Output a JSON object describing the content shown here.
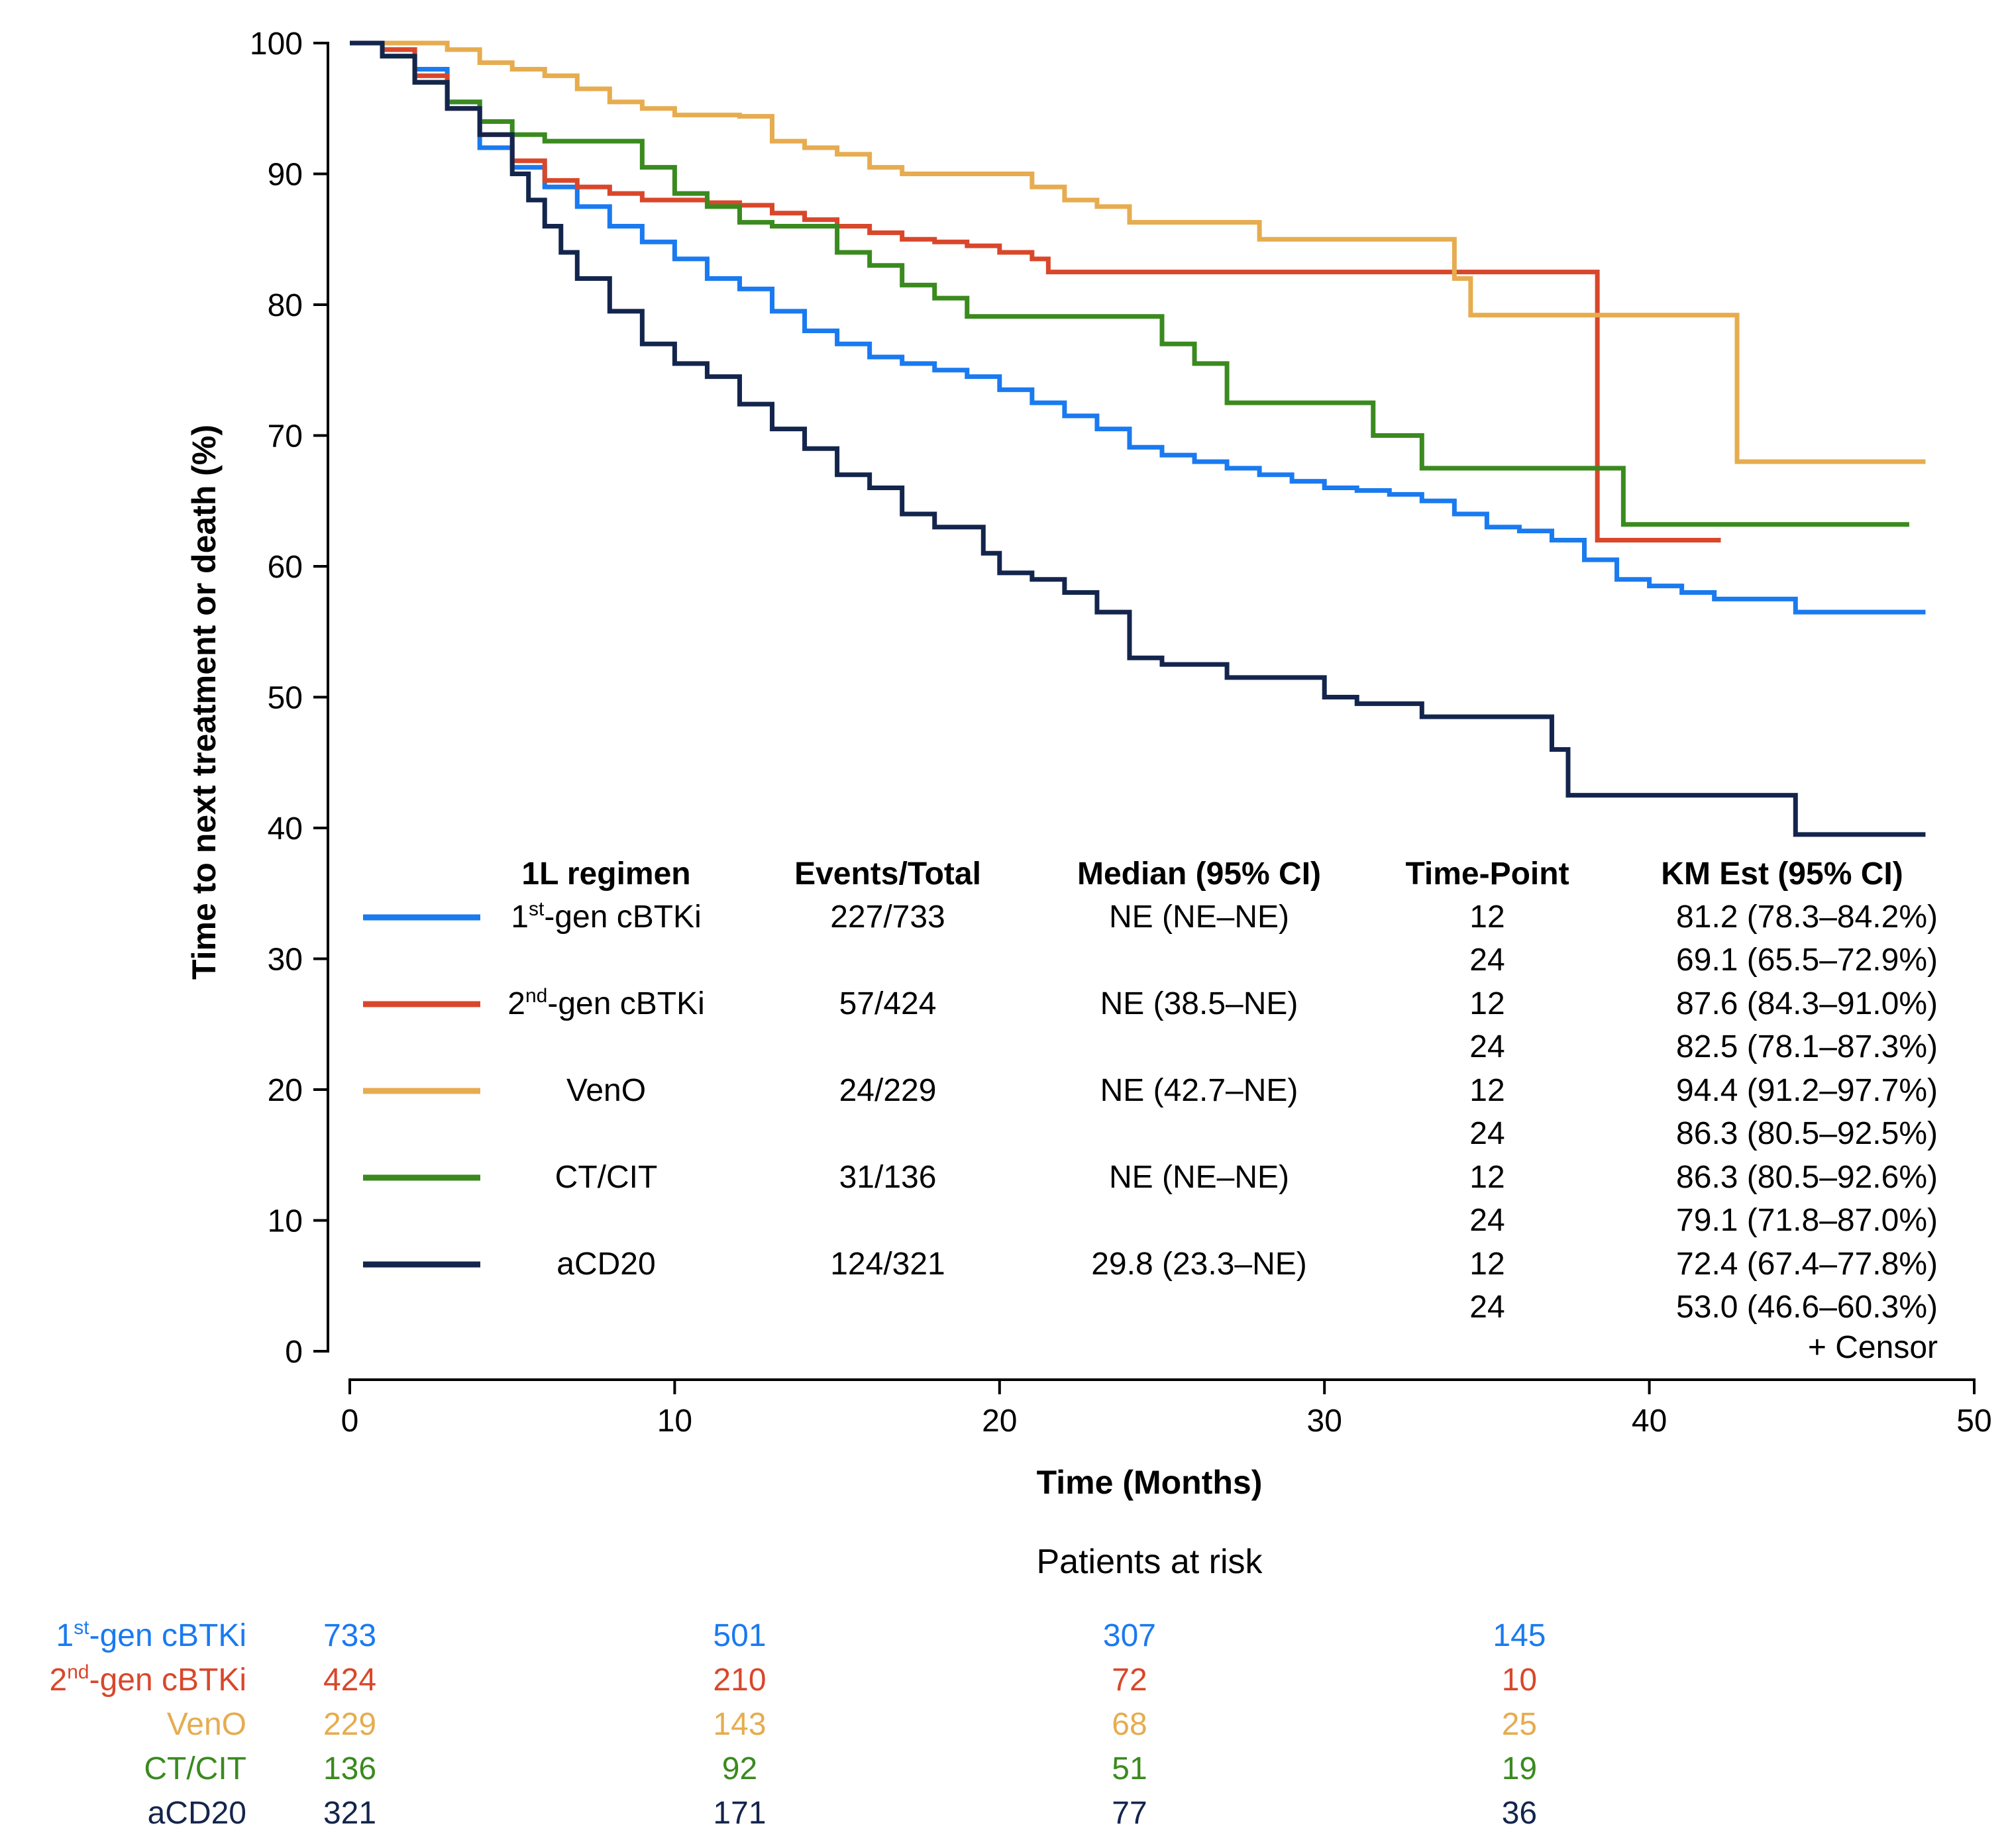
{
  "chart_data": {
    "type": "line",
    "subtype": "kaplan-meier",
    "ylabel": "Time to next treatment or death (%)",
    "xlabel": "Time (Months)",
    "xlim": [
      0,
      50
    ],
    "ylim": [
      0,
      100
    ],
    "x_ticks": [
      "0",
      "10",
      "20",
      "30",
      "40",
      "50"
    ],
    "y_ticks": [
      "0",
      "10",
      "20",
      "30",
      "40",
      "50",
      "60",
      "70",
      "80",
      "90",
      "100"
    ],
    "legend": {
      "headers": {
        "regimen": "1L regimen",
        "events": "Events/Total",
        "median": "Median (95% CI)",
        "timepoint": "Time-Point",
        "km": "KM Est (95% CI)"
      },
      "censor_label": "+ Censor"
    },
    "series": [
      {
        "name": "1st-gen cBTKi",
        "label_main": "1",
        "label_sup": "st",
        "label_rest": "-gen cBTKi",
        "color": "#1a7af0",
        "events": "227/733",
        "median": "NE (NE–NE)",
        "timepoints": [
          "12",
          "24"
        ],
        "km": [
          "81.2 (78.3–84.2%)",
          "69.1 (65.5–72.9%)"
        ],
        "at_risk": [
          "733",
          "501",
          "307",
          "145"
        ],
        "points": [
          [
            0,
            100
          ],
          [
            1,
            99.5
          ],
          [
            2,
            98
          ],
          [
            3,
            95.5
          ],
          [
            4,
            92
          ],
          [
            5,
            90.5
          ],
          [
            6,
            89
          ],
          [
            7,
            87.5
          ],
          [
            8,
            86
          ],
          [
            9,
            84.8
          ],
          [
            10,
            83.5
          ],
          [
            11,
            82
          ],
          [
            12,
            81.2
          ],
          [
            13,
            79.5
          ],
          [
            14,
            78
          ],
          [
            15,
            77
          ],
          [
            16,
            76
          ],
          [
            17,
            75.5
          ],
          [
            18,
            75
          ],
          [
            19,
            74.5
          ],
          [
            20,
            73.5
          ],
          [
            21,
            72.5
          ],
          [
            22,
            71.5
          ],
          [
            23,
            70.5
          ],
          [
            24,
            69.1
          ],
          [
            25,
            68.5
          ],
          [
            26,
            68
          ],
          [
            27,
            67.5
          ],
          [
            28,
            67
          ],
          [
            29,
            66.5
          ],
          [
            30,
            66
          ],
          [
            31,
            65.8
          ],
          [
            32,
            65.5
          ],
          [
            33,
            65
          ],
          [
            34,
            64
          ],
          [
            35,
            63
          ],
          [
            36,
            62.7
          ],
          [
            37,
            62
          ],
          [
            38,
            60.5
          ],
          [
            39,
            59
          ],
          [
            40,
            58.5
          ],
          [
            41,
            58
          ],
          [
            42,
            57.5
          ],
          [
            43,
            57.5
          ],
          [
            44,
            57.5
          ],
          [
            44.5,
            56.5
          ],
          [
            48.5,
            56.5
          ]
        ]
      },
      {
        "name": "2nd-gen cBTKi",
        "label_main": "2",
        "label_sup": "nd",
        "label_rest": "-gen cBTKi",
        "color": "#d9472b",
        "events": "57/424",
        "median": "NE (38.5–NE)",
        "timepoints": [
          "12",
          "24"
        ],
        "km": [
          "87.6 (84.3–91.0%)",
          "82.5 (78.1–87.3%)"
        ],
        "at_risk": [
          "424",
          "210",
          "72",
          "10"
        ],
        "points": [
          [
            0,
            100
          ],
          [
            1,
            99.5
          ],
          [
            2,
            97.5
          ],
          [
            3,
            95
          ],
          [
            4,
            93
          ],
          [
            5,
            91
          ],
          [
            6,
            89.5
          ],
          [
            7,
            89
          ],
          [
            8,
            88.5
          ],
          [
            9,
            88
          ],
          [
            10,
            88
          ],
          [
            11,
            87.8
          ],
          [
            12,
            87.6
          ],
          [
            13,
            87
          ],
          [
            14,
            86.5
          ],
          [
            15,
            86
          ],
          [
            16,
            85.5
          ],
          [
            17,
            85
          ],
          [
            18,
            84.8
          ],
          [
            19,
            84.5
          ],
          [
            20,
            84
          ],
          [
            21,
            83.5
          ],
          [
            21.5,
            82.5
          ],
          [
            30,
            82.5
          ],
          [
            38.4,
            82.5
          ],
          [
            38.4,
            62
          ],
          [
            42.2,
            62
          ]
        ]
      },
      {
        "name": "VenO",
        "label_main": "VenO",
        "label_sup": "",
        "label_rest": "",
        "color": "#e6ac4f",
        "events": "24/229",
        "median": "NE (42.7–NE)",
        "timepoints": [
          "12",
          "24"
        ],
        "km": [
          "94.4 (91.2–97.7%)",
          "86.3 (80.5–92.5%)"
        ],
        "at_risk": [
          "229",
          "143",
          "68",
          "25"
        ],
        "points": [
          [
            0,
            100
          ],
          [
            2,
            100
          ],
          [
            3,
            99.5
          ],
          [
            4,
            98.5
          ],
          [
            5,
            98
          ],
          [
            6,
            97.5
          ],
          [
            7,
            96.5
          ],
          [
            8,
            95.5
          ],
          [
            9,
            95
          ],
          [
            10,
            94.5
          ],
          [
            11,
            94.5
          ],
          [
            12,
            94.4
          ],
          [
            13,
            92.5
          ],
          [
            14,
            92
          ],
          [
            15,
            91.5
          ],
          [
            16,
            90.5
          ],
          [
            17,
            90
          ],
          [
            18,
            90
          ],
          [
            19,
            90
          ],
          [
            20,
            90
          ],
          [
            21,
            89
          ],
          [
            22,
            88
          ],
          [
            23,
            87.5
          ],
          [
            24,
            86.3
          ],
          [
            25,
            86.3
          ],
          [
            27,
            86.3
          ],
          [
            28,
            85
          ],
          [
            33,
            85
          ],
          [
            34,
            82
          ],
          [
            34.5,
            79.2
          ],
          [
            42.7,
            79.2
          ],
          [
            42.7,
            68
          ],
          [
            48.5,
            68
          ]
        ]
      },
      {
        "name": "CT/CIT",
        "label_main": "CT/CIT",
        "label_sup": "",
        "label_rest": "",
        "color": "#3a8a1f",
        "events": "31/136",
        "median": "NE (NE–NE)",
        "timepoints": [
          "12",
          "24"
        ],
        "km": [
          "86.3 (80.5–92.6%)",
          "79.1 (71.8–87.0%)"
        ],
        "at_risk": [
          "136",
          "92",
          "51",
          "19"
        ],
        "points": [
          [
            0,
            100
          ],
          [
            1,
            99
          ],
          [
            2,
            97
          ],
          [
            3,
            95.5
          ],
          [
            4,
            94
          ],
          [
            5,
            93
          ],
          [
            6,
            92.5
          ],
          [
            7,
            92.5
          ],
          [
            8,
            92.5
          ],
          [
            9,
            90.5
          ],
          [
            10,
            88.5
          ],
          [
            11,
            87.5
          ],
          [
            12,
            86.3
          ],
          [
            13,
            86
          ],
          [
            14,
            86
          ],
          [
            15,
            84
          ],
          [
            16,
            83
          ],
          [
            17,
            81.5
          ],
          [
            18,
            80.5
          ],
          [
            19,
            79.1
          ],
          [
            24,
            79.1
          ],
          [
            25,
            77
          ],
          [
            26,
            75.5
          ],
          [
            27,
            72.5
          ],
          [
            29,
            72.5
          ],
          [
            31,
            72.5
          ],
          [
            31.5,
            70
          ],
          [
            33,
            67.5
          ],
          [
            37,
            67.5
          ],
          [
            39,
            67.5
          ],
          [
            39.2,
            63.2
          ],
          [
            48,
            63.2
          ]
        ]
      },
      {
        "name": "aCD20",
        "label_main": "aCD20",
        "label_sup": "",
        "label_rest": "",
        "color": "#14254d",
        "events": "124/321",
        "median": "29.8 (23.3–NE)",
        "timepoints": [
          "12",
          "24"
        ],
        "km": [
          "72.4 (67.4–77.8%)",
          "53.0 (46.6–60.3%)"
        ],
        "at_risk": [
          "321",
          "171",
          "77",
          "36"
        ],
        "points": [
          [
            0,
            100
          ],
          [
            1,
            99
          ],
          [
            2,
            97
          ],
          [
            3,
            95
          ],
          [
            4,
            93
          ],
          [
            5,
            90
          ],
          [
            5.5,
            88
          ],
          [
            6,
            86
          ],
          [
            6.5,
            84
          ],
          [
            7,
            82
          ],
          [
            8,
            79.5
          ],
          [
            9,
            77
          ],
          [
            10,
            75.5
          ],
          [
            11,
            74.5
          ],
          [
            12,
            72.4
          ],
          [
            13,
            70.5
          ],
          [
            14,
            69
          ],
          [
            15,
            67
          ],
          [
            16,
            66
          ],
          [
            17,
            64
          ],
          [
            18,
            63
          ],
          [
            19,
            63
          ],
          [
            19.5,
            61
          ],
          [
            20,
            59.5
          ],
          [
            21,
            59
          ],
          [
            22,
            58
          ],
          [
            23,
            56.5
          ],
          [
            24,
            53
          ],
          [
            25,
            52.5
          ],
          [
            26,
            52.5
          ],
          [
            27,
            51.5
          ],
          [
            29,
            51.5
          ],
          [
            30,
            50
          ],
          [
            31,
            49.5
          ],
          [
            32,
            49.5
          ],
          [
            33,
            48.5
          ],
          [
            36,
            48.5
          ],
          [
            37,
            46
          ],
          [
            37.5,
            42.5
          ],
          [
            44,
            42.5
          ],
          [
            44.5,
            39.5
          ],
          [
            48.5,
            39.5
          ]
        ]
      }
    ],
    "risk_table": {
      "title": "Patients at risk",
      "x": [
        0,
        12,
        24,
        36
      ]
    }
  }
}
